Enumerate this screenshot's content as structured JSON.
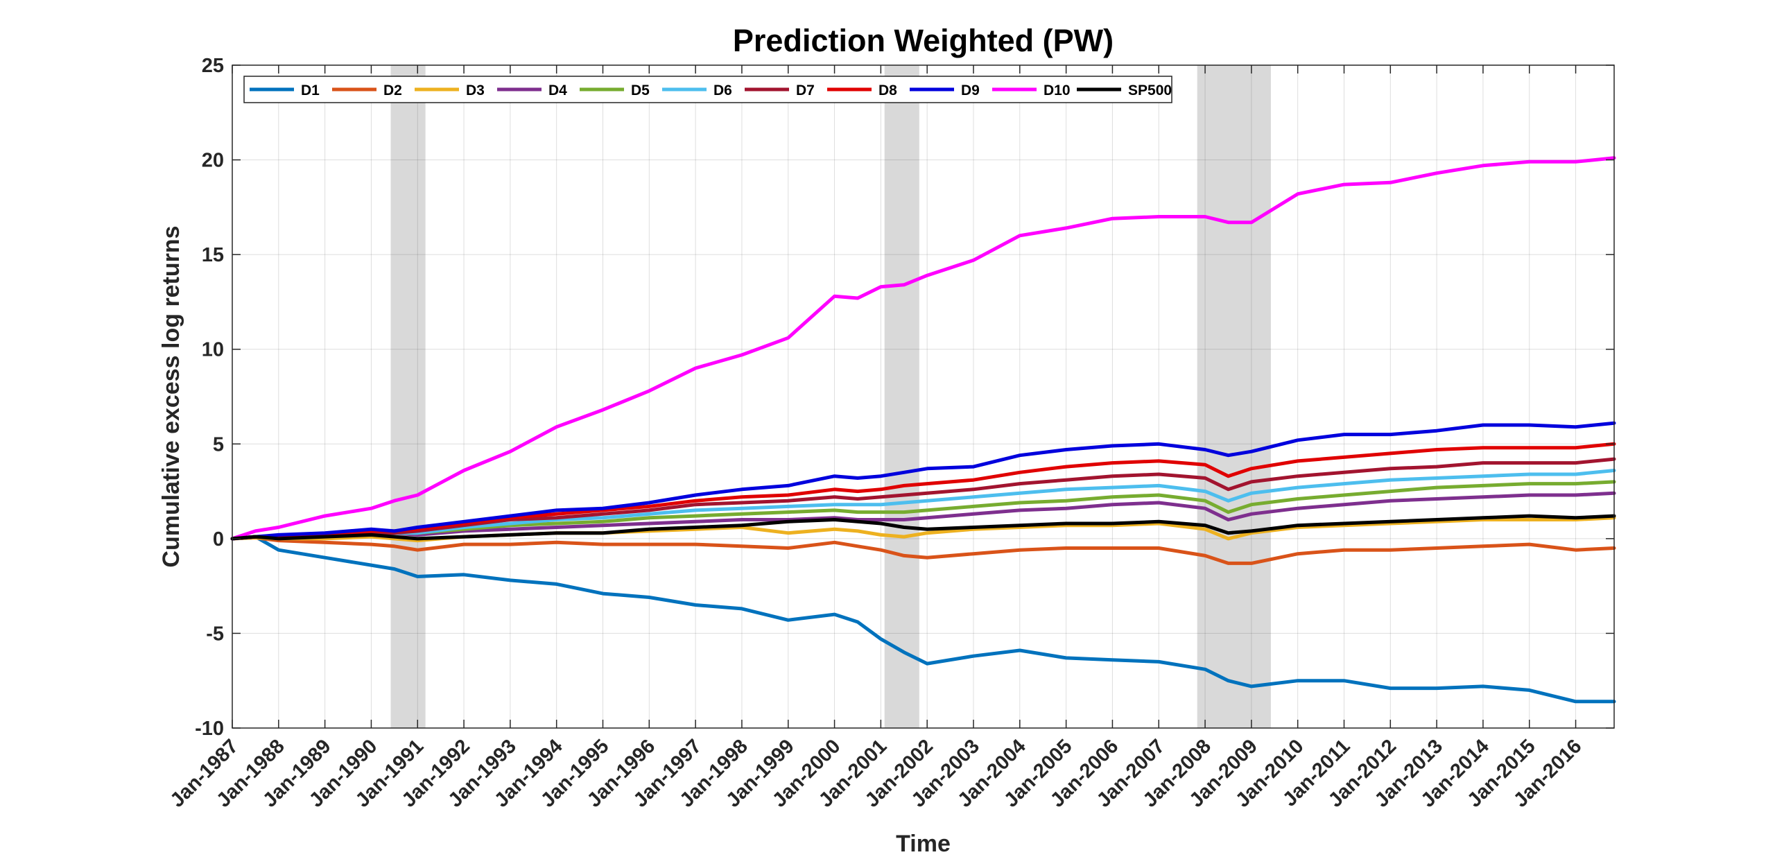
{
  "chart_data": {
    "type": "line",
    "title": "Prediction Weighted (PW)",
    "xlabel": "Time",
    "ylabel": "Cumulative excess log returns",
    "ylim": [
      -10,
      25
    ],
    "yticks": [
      -10,
      -5,
      0,
      5,
      10,
      15,
      20,
      25
    ],
    "xlim": [
      1987.0,
      2016.83
    ],
    "xticks": [
      {
        "value": 1987,
        "label": "Jan-1987"
      },
      {
        "value": 1988,
        "label": "Jan-1988"
      },
      {
        "value": 1989,
        "label": "Jan-1989"
      },
      {
        "value": 1990,
        "label": "Jan-1990"
      },
      {
        "value": 1991,
        "label": "Jan-1991"
      },
      {
        "value": 1992,
        "label": "Jan-1992"
      },
      {
        "value": 1993,
        "label": "Jan-1993"
      },
      {
        "value": 1994,
        "label": "Jan-1994"
      },
      {
        "value": 1995,
        "label": "Jan-1995"
      },
      {
        "value": 1996,
        "label": "Jan-1996"
      },
      {
        "value": 1997,
        "label": "Jan-1997"
      },
      {
        "value": 1998,
        "label": "Jan-1998"
      },
      {
        "value": 1999,
        "label": "Jan-1999"
      },
      {
        "value": 2000,
        "label": "Jan-2000"
      },
      {
        "value": 2001,
        "label": "Jan-2001"
      },
      {
        "value": 2002,
        "label": "Jan-2002"
      },
      {
        "value": 2003,
        "label": "Jan-2003"
      },
      {
        "value": 2004,
        "label": "Jan-2004"
      },
      {
        "value": 2005,
        "label": "Jan-2005"
      },
      {
        "value": 2006,
        "label": "Jan-2006"
      },
      {
        "value": 2007,
        "label": "Jan-2007"
      },
      {
        "value": 2008,
        "label": "Jan-2008"
      },
      {
        "value": 2009,
        "label": "Jan-2009"
      },
      {
        "value": 2010,
        "label": "Jan-2010"
      },
      {
        "value": 2011,
        "label": "Jan-2011"
      },
      {
        "value": 2012,
        "label": "Jan-2012"
      },
      {
        "value": 2013,
        "label": "Jan-2013"
      },
      {
        "value": 2014,
        "label": "Jan-2014"
      },
      {
        "value": 2015,
        "label": "Jan-2015"
      },
      {
        "value": 2016,
        "label": "Jan-2016"
      }
    ],
    "grid": true,
    "legend_position": "top-left",
    "recession_bands": [
      {
        "start": 1990.42,
        "end": 1991.17
      },
      {
        "start": 2001.08,
        "end": 2001.83
      },
      {
        "start": 2007.83,
        "end": 2009.42
      }
    ],
    "x": [
      1987.0,
      1987.5,
      1988.0,
      1989.0,
      1990.0,
      1990.5,
      1991.0,
      1992.0,
      1993.0,
      1994.0,
      1995.0,
      1996.0,
      1997.0,
      1998.0,
      1999.0,
      2000.0,
      2000.5,
      2001.0,
      2001.5,
      2002.0,
      2003.0,
      2004.0,
      2005.0,
      2006.0,
      2007.0,
      2008.0,
      2008.5,
      2009.0,
      2010.0,
      2011.0,
      2012.0,
      2013.0,
      2014.0,
      2015.0,
      2016.0,
      2016.83
    ],
    "series": [
      {
        "name": "D1",
        "color": "#0072BD",
        "values": [
          0,
          0.1,
          -0.6,
          -1.0,
          -1.4,
          -1.6,
          -2.0,
          -1.9,
          -2.2,
          -2.4,
          -2.9,
          -3.1,
          -3.5,
          -3.7,
          -4.3,
          -4.0,
          -4.4,
          -5.3,
          -6.0,
          -6.6,
          -6.2,
          -5.9,
          -6.3,
          -6.4,
          -6.5,
          -6.9,
          -7.5,
          -7.8,
          -7.5,
          -7.5,
          -7.9,
          -7.9,
          -7.8,
          -8.0,
          -8.6,
          -8.6
        ]
      },
      {
        "name": "D2",
        "color": "#D95319",
        "values": [
          0,
          0.05,
          -0.1,
          -0.2,
          -0.3,
          -0.4,
          -0.6,
          -0.3,
          -0.3,
          -0.2,
          -0.3,
          -0.3,
          -0.3,
          -0.4,
          -0.5,
          -0.2,
          -0.4,
          -0.6,
          -0.9,
          -1.0,
          -0.8,
          -0.6,
          -0.5,
          -0.5,
          -0.5,
          -0.9,
          -1.3,
          -1.3,
          -0.8,
          -0.6,
          -0.6,
          -0.5,
          -0.4,
          -0.3,
          -0.6,
          -0.5
        ]
      },
      {
        "name": "D3",
        "color": "#EDB120",
        "values": [
          0,
          0.05,
          0.0,
          0.0,
          0.1,
          0.0,
          -0.1,
          0.1,
          0.2,
          0.3,
          0.3,
          0.4,
          0.5,
          0.6,
          0.3,
          0.5,
          0.4,
          0.2,
          0.1,
          0.3,
          0.5,
          0.6,
          0.7,
          0.7,
          0.8,
          0.5,
          0.0,
          0.3,
          0.6,
          0.7,
          0.8,
          0.9,
          1.0,
          1.0,
          1.0,
          1.1
        ]
      },
      {
        "name": "D4",
        "color": "#7E2F8E",
        "values": [
          0,
          0.1,
          0.1,
          0.2,
          0.3,
          0.3,
          0.2,
          0.4,
          0.5,
          0.6,
          0.7,
          0.8,
          0.9,
          1.0,
          1.0,
          1.1,
          1.0,
          1.0,
          1.0,
          1.1,
          1.3,
          1.5,
          1.6,
          1.8,
          1.9,
          1.6,
          1.0,
          1.3,
          1.6,
          1.8,
          2.0,
          2.1,
          2.2,
          2.3,
          2.3,
          2.4
        ]
      },
      {
        "name": "D5",
        "color": "#77AC30",
        "values": [
          0,
          0.1,
          0.1,
          0.2,
          0.3,
          0.3,
          0.3,
          0.5,
          0.7,
          0.8,
          0.9,
          1.1,
          1.2,
          1.3,
          1.4,
          1.5,
          1.4,
          1.4,
          1.4,
          1.5,
          1.7,
          1.9,
          2.0,
          2.2,
          2.3,
          2.0,
          1.4,
          1.8,
          2.1,
          2.3,
          2.5,
          2.7,
          2.8,
          2.9,
          2.9,
          3.0
        ]
      },
      {
        "name": "D6",
        "color": "#4DBEEE",
        "values": [
          0,
          0.1,
          0.1,
          0.2,
          0.3,
          0.3,
          0.3,
          0.6,
          0.8,
          1.0,
          1.1,
          1.3,
          1.5,
          1.6,
          1.7,
          1.8,
          1.8,
          1.8,
          1.9,
          2.0,
          2.2,
          2.4,
          2.6,
          2.7,
          2.8,
          2.5,
          2.0,
          2.4,
          2.7,
          2.9,
          3.1,
          3.2,
          3.3,
          3.4,
          3.4,
          3.6
        ]
      },
      {
        "name": "D7",
        "color": "#A2142F",
        "values": [
          0,
          0.1,
          0.1,
          0.2,
          0.3,
          0.3,
          0.4,
          0.7,
          1.0,
          1.1,
          1.3,
          1.5,
          1.8,
          1.9,
          2.0,
          2.2,
          2.1,
          2.2,
          2.3,
          2.4,
          2.6,
          2.9,
          3.1,
          3.3,
          3.4,
          3.2,
          2.6,
          3.0,
          3.3,
          3.5,
          3.7,
          3.8,
          4.0,
          4.0,
          4.0,
          4.2
        ]
      },
      {
        "name": "D8",
        "color": "#E00000",
        "values": [
          0,
          0.1,
          0.1,
          0.2,
          0.4,
          0.4,
          0.5,
          0.8,
          1.1,
          1.3,
          1.5,
          1.7,
          2.0,
          2.2,
          2.3,
          2.6,
          2.5,
          2.6,
          2.8,
          2.9,
          3.1,
          3.5,
          3.8,
          4.0,
          4.1,
          3.9,
          3.3,
          3.7,
          4.1,
          4.3,
          4.5,
          4.7,
          4.8,
          4.8,
          4.8,
          5.0
        ]
      },
      {
        "name": "D9",
        "color": "#0000DD",
        "values": [
          0,
          0.1,
          0.2,
          0.3,
          0.5,
          0.4,
          0.6,
          0.9,
          1.2,
          1.5,
          1.6,
          1.9,
          2.3,
          2.6,
          2.8,
          3.3,
          3.2,
          3.3,
          3.5,
          3.7,
          3.8,
          4.4,
          4.7,
          4.9,
          5.0,
          4.7,
          4.4,
          4.6,
          5.2,
          5.5,
          5.5,
          5.7,
          6.0,
          6.0,
          5.9,
          6.1
        ]
      },
      {
        "name": "D10",
        "color": "#FF00FF",
        "values": [
          0,
          0.4,
          0.6,
          1.2,
          1.6,
          2.0,
          2.3,
          3.6,
          4.6,
          5.9,
          6.8,
          7.8,
          9.0,
          9.7,
          10.6,
          12.8,
          12.7,
          13.3,
          13.4,
          13.9,
          14.7,
          16.0,
          16.4,
          16.9,
          17.0,
          17.0,
          16.7,
          16.7,
          18.2,
          18.7,
          18.8,
          19.3,
          19.7,
          19.9,
          19.9,
          20.1
        ]
      },
      {
        "name": "SP500",
        "color": "#000000",
        "values": [
          0,
          0.1,
          0.0,
          0.1,
          0.2,
          0.1,
          0.0,
          0.1,
          0.2,
          0.3,
          0.3,
          0.5,
          0.6,
          0.7,
          0.9,
          1.0,
          0.9,
          0.8,
          0.6,
          0.5,
          0.6,
          0.7,
          0.8,
          0.8,
          0.9,
          0.7,
          0.3,
          0.4,
          0.7,
          0.8,
          0.9,
          1.0,
          1.1,
          1.2,
          1.1,
          1.2
        ]
      }
    ]
  }
}
